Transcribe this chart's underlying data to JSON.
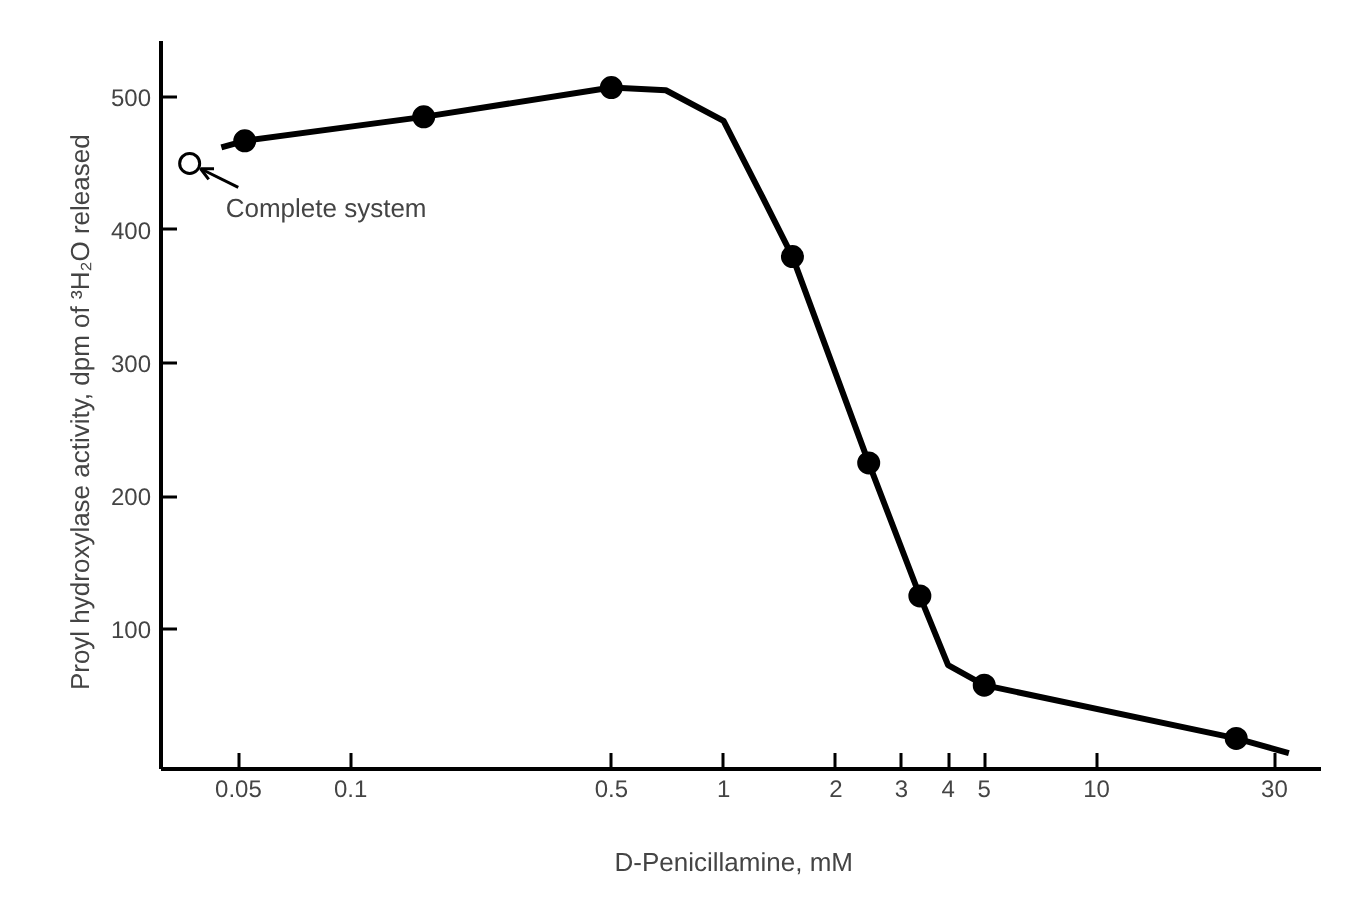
{
  "chart_data": {
    "type": "scatter",
    "xlabel": "D-Penicillamine,   mM",
    "ylabel": "Proyl hydroxylase activity,   dpm of ³H₂O released",
    "log": "x",
    "xlim": [
      0.031,
      40
    ],
    "ylim": [
      -5,
      542
    ],
    "xticks": [
      0.05,
      0.1,
      0.5,
      1,
      2,
      3,
      4,
      5,
      10,
      30
    ],
    "yticks": [
      100,
      200,
      300,
      400,
      500
    ],
    "grid": false,
    "series": [
      {
        "type": "line",
        "color": "#000000",
        "marker": "none",
        "line_style": "solid",
        "x": [
          0.045,
          0.052,
          0.157,
          0.5,
          0.7,
          1.0,
          1.27,
          1.53,
          2.45,
          3.36,
          4.0,
          5.0,
          23.7,
          32.8
        ],
        "values": [
          462,
          467,
          485,
          507,
          505,
          482,
          425,
          380,
          225,
          125,
          73,
          58,
          18,
          7
        ]
      },
      {
        "color": "#000000",
        "marker": "circle",
        "x": [
          0.052,
          0.157,
          0.5,
          1.53,
          2.45,
          3.36,
          5.0,
          23.7
        ],
        "values": [
          467,
          485,
          507,
          380,
          225,
          125,
          58,
          18
        ]
      },
      {
        "color": "#ffffff",
        "marker": "circle",
        "x": [
          0.037
        ],
        "values": [
          450
        ]
      }
    ],
    "annotations": [
      {
        "text": "Complete system",
        "x": 0.037,
        "y": 450
      }
    ]
  }
}
